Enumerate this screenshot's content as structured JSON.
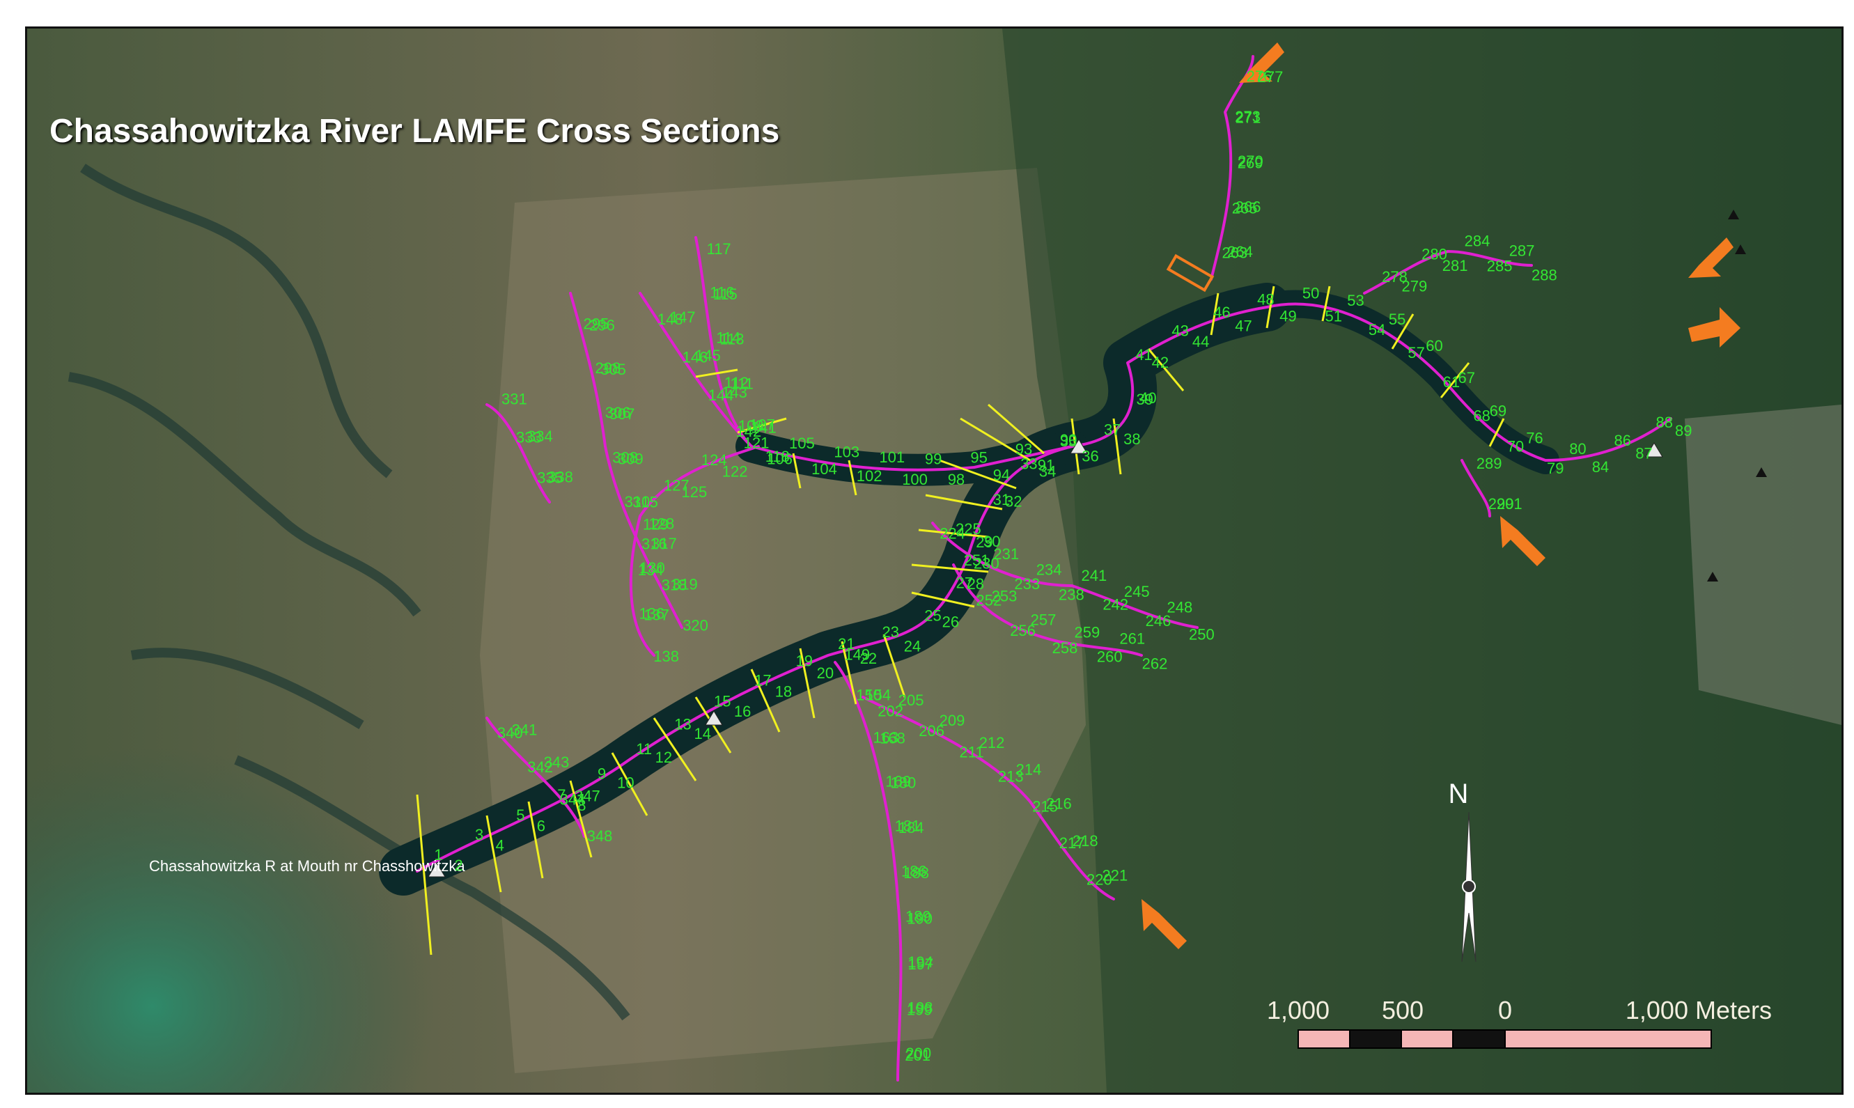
{
  "map": {
    "title": "Chassahowitzka River LAMFE Cross Sections",
    "station_label": "Chassahowitzka R at Mouth nr Chasshowitzka",
    "north_label": "N",
    "scale_labels": [
      "1,000",
      "500",
      "0",
      "1,000 Meters"
    ],
    "colors": {
      "river_channel": "#0c2a2a",
      "centerline": "#e020d0",
      "cross_section": "#f0f020",
      "label": "#33e633",
      "arrow": "#f47c20",
      "scale_fill": "#f4b6b6"
    },
    "cross_section_labels": [
      "1",
      "2",
      "3",
      "4",
      "5",
      "6",
      "7",
      "8",
      "9",
      "10",
      "11",
      "12",
      "13",
      "14",
      "15",
      "16",
      "17",
      "18",
      "19",
      "20",
      "21",
      "22",
      "23",
      "24",
      "25",
      "26",
      "27",
      "28",
      "29",
      "30",
      "31",
      "32",
      "33",
      "34",
      "35",
      "36",
      "37",
      "38",
      "39",
      "40",
      "41",
      "42",
      "43",
      "44",
      "46",
      "47",
      "48",
      "49",
      "50",
      "51",
      "53",
      "54",
      "55",
      "57",
      "60",
      "61",
      "67",
      "68",
      "69",
      "70",
      "76",
      "79",
      "80",
      "84",
      "86",
      "87",
      "88",
      "89",
      "90",
      "91",
      "93",
      "94",
      "95",
      "98",
      "99",
      "100",
      "101",
      "102",
      "103",
      "104",
      "105",
      "106",
      "107",
      "108",
      "111",
      "112",
      "113",
      "114",
      "115",
      "116",
      "117",
      "118",
      "121",
      "122",
      "124",
      "125",
      "127",
      "128",
      "129",
      "130",
      "134",
      "136",
      "137",
      "138",
      "141",
      "142",
      "143",
      "144",
      "145",
      "146",
      "147",
      "148",
      "149",
      "150",
      "154",
      "163",
      "168",
      "169",
      "180",
      "181",
      "184",
      "186",
      "188",
      "189",
      "190",
      "194",
      "197",
      "198",
      "199",
      "200",
      "201",
      "202",
      "205",
      "206",
      "209",
      "211",
      "212",
      "213",
      "214",
      "215",
      "216",
      "217",
      "218",
      "220",
      "221",
      "224",
      "225",
      "230",
      "231",
      "233",
      "234",
      "238",
      "241",
      "242",
      "245",
      "246",
      "248",
      "250",
      "251",
      "252",
      "253",
      "256",
      "257",
      "258",
      "259",
      "260",
      "261",
      "262",
      "263",
      "264",
      "265",
      "266",
      "269",
      "270",
      "271",
      "273",
      "276",
      "277",
      "278",
      "279",
      "280",
      "281",
      "284",
      "285",
      "287",
      "288",
      "289",
      "290",
      "291",
      "295",
      "296",
      "298",
      "305",
      "306",
      "307",
      "308",
      "309",
      "310",
      "315",
      "316",
      "317",
      "318",
      "319",
      "320",
      "331",
      "333",
      "334",
      "335",
      "338",
      "340",
      "341",
      "342",
      "343",
      "344",
      "347",
      "348"
    ]
  }
}
